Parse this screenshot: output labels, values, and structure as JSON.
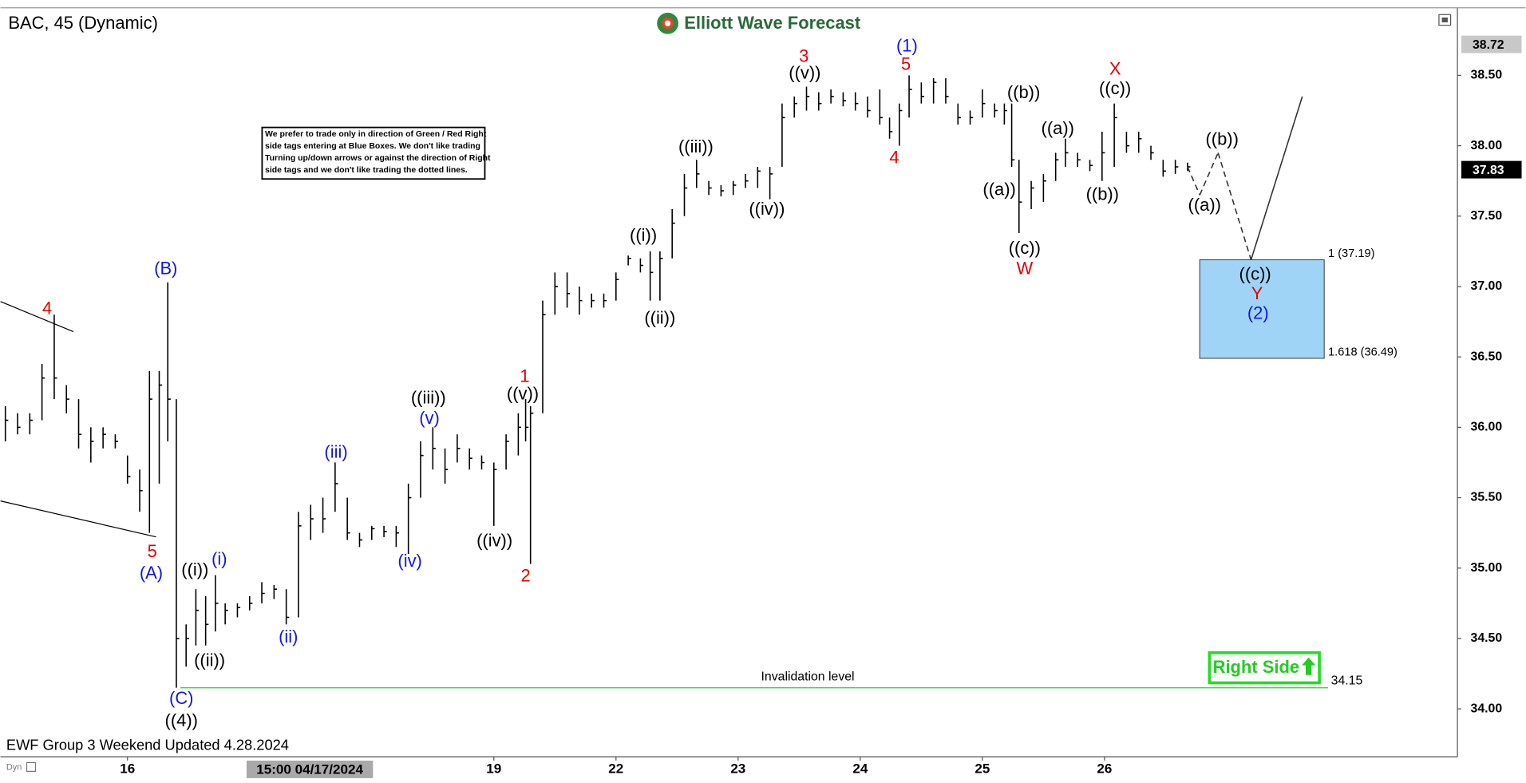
{
  "chart_data": {
    "type": "ohlc",
    "title": "BAC, 45 (Dynamic)",
    "brand": "Elliott Wave Forecast",
    "footer": "EWF Group 3 Weekend Updated 4.28.2024",
    "footer_small": "Dyn",
    "crosshair_label": "15:00 04/17/2024",
    "note_lines": [
      "We prefer to trade only in direction of Green / Red Right",
      "side tags entering at Blue Boxes. We don't like trading",
      "Turning up/down arrows or against the direction of Right",
      "side tags and we don't like trading the dotted lines."
    ],
    "right_side": "Right Side",
    "xlim": [
      -0.04,
      11.89
    ],
    "ylim": [
      33.66,
      38.98
    ],
    "xticks": [
      {
        "value": 1,
        "label": "16"
      },
      {
        "value": 4,
        "label": "19"
      },
      {
        "value": 5,
        "label": "22"
      },
      {
        "value": 6,
        "label": "23"
      },
      {
        "value": 7,
        "label": "24"
      },
      {
        "value": 8,
        "label": "25"
      },
      {
        "value": 9,
        "label": "26"
      }
    ],
    "yticks": [
      {
        "value": 34,
        "label": "34.00"
      },
      {
        "value": 34.5,
        "label": "34.50"
      },
      {
        "value": 35,
        "label": "35.00"
      },
      {
        "value": 35.5,
        "label": "35.50"
      },
      {
        "value": 36,
        "label": "36.00"
      },
      {
        "value": 36.5,
        "label": "36.50"
      },
      {
        "value": 37,
        "label": "37.00"
      },
      {
        "value": 37.5,
        "label": "37.50"
      },
      {
        "value": 38,
        "label": "38.00"
      },
      {
        "value": 38.5,
        "label": "38.50"
      }
    ],
    "price_tags": [
      {
        "value": 38.72,
        "color": "#c8c8c8",
        "text_color": "#000000"
      },
      {
        "value": 37.83,
        "color": "#000000",
        "text_color": "#ffffff"
      }
    ],
    "bar_color": "#000000",
    "x": [
      0,
      0.1,
      0.2,
      0.3,
      0.4,
      0.5,
      0.6,
      0.7,
      0.8,
      0.9,
      1.0,
      1.1,
      1.18,
      1.26,
      1.33,
      1.4,
      1.48,
      1.56,
      1.64,
      1.72,
      1.8,
      1.9,
      2.0,
      2.1,
      2.2,
      2.3,
      2.4,
      2.5,
      2.6,
      2.7,
      2.8,
      2.9,
      3.0,
      3.1,
      3.2,
      3.3,
      3.4,
      3.5,
      3.6,
      3.7,
      3.8,
      3.9,
      4.0,
      4.1,
      4.2,
      4.26,
      4.3,
      4.4,
      4.5,
      4.6,
      4.7,
      4.8,
      4.9,
      5.0,
      5.1,
      5.2,
      5.28,
      5.36,
      5.46,
      5.56,
      5.66,
      5.76,
      5.86,
      5.96,
      6.06,
      6.16,
      6.26,
      6.36,
      6.46,
      6.56,
      6.66,
      6.76,
      6.86,
      6.96,
      7.06,
      7.16,
      7.24,
      7.32,
      7.4,
      7.5,
      7.6,
      7.7,
      7.8,
      7.9,
      8.0,
      8.1,
      8.18,
      8.24,
      8.3,
      8.4,
      8.5,
      8.6,
      8.68,
      8.78,
      8.88,
      8.98,
      9.08,
      9.18,
      9.28,
      9.38,
      9.48,
      9.58,
      9.68
    ],
    "high": [
      36.15,
      36.1,
      36.1,
      36.45,
      36.8,
      36.3,
      36.2,
      36.0,
      36.0,
      35.95,
      35.8,
      35.7,
      36.4,
      36.4,
      37.03,
      36.2,
      34.6,
      34.85,
      34.8,
      34.95,
      34.75,
      34.75,
      34.8,
      34.9,
      34.88,
      34.85,
      35.4,
      35.45,
      35.5,
      35.75,
      35.5,
      35.25,
      35.3,
      35.3,
      35.3,
      35.6,
      35.9,
      36.0,
      35.85,
      35.95,
      35.85,
      35.8,
      35.75,
      35.95,
      36.1,
      36.2,
      36.15,
      36.9,
      37.1,
      37.1,
      37.0,
      36.95,
      36.95,
      37.1,
      37.22,
      37.2,
      37.25,
      37.25,
      37.55,
      37.8,
      37.9,
      37.75,
      37.72,
      37.75,
      37.8,
      37.85,
      37.85,
      38.3,
      38.35,
      38.42,
      38.38,
      38.4,
      38.38,
      38.38,
      38.35,
      38.4,
      38.2,
      38.3,
      38.5,
      38.45,
      38.48,
      38.48,
      38.3,
      38.25,
      38.4,
      38.3,
      38.3,
      38.3,
      37.9,
      37.75,
      37.8,
      37.95,
      38.05,
      37.95,
      37.9,
      38.1,
      38.3,
      38.1,
      38.1,
      38.0,
      37.9,
      37.9,
      37.88
    ],
    "low": [
      35.9,
      35.95,
      35.95,
      36.05,
      36.2,
      36.1,
      35.85,
      35.75,
      35.85,
      35.85,
      35.6,
      35.4,
      35.25,
      35.6,
      35.9,
      34.15,
      34.3,
      34.45,
      34.45,
      34.55,
      34.6,
      34.65,
      34.7,
      34.75,
      34.78,
      34.6,
      34.65,
      35.2,
      35.25,
      35.4,
      35.2,
      35.15,
      35.2,
      35.22,
      35.15,
      35.1,
      35.5,
      35.7,
      35.6,
      35.75,
      35.7,
      35.7,
      35.3,
      35.7,
      35.8,
      35.9,
      35.03,
      36.1,
      36.8,
      36.85,
      36.8,
      36.85,
      36.85,
      36.9,
      37.15,
      37.1,
      36.9,
      36.9,
      37.2,
      37.5,
      37.7,
      37.65,
      37.64,
      37.65,
      37.7,
      37.7,
      37.62,
      37.85,
      38.2,
      38.25,
      38.25,
      38.3,
      38.28,
      38.25,
      38.2,
      38.15,
      38.05,
      38.0,
      38.2,
      38.3,
      38.3,
      38.3,
      38.15,
      38.15,
      38.2,
      38.2,
      38.15,
      37.85,
      37.38,
      37.55,
      37.6,
      37.75,
      37.85,
      37.85,
      37.82,
      37.75,
      37.85,
      37.95,
      37.95,
      37.9,
      37.78,
      37.8,
      37.82
    ],
    "close": [
      36.05,
      36.0,
      36.05,
      36.35,
      36.35,
      36.2,
      35.95,
      35.9,
      35.95,
      35.9,
      35.65,
      35.55,
      36.2,
      36.3,
      36.2,
      34.5,
      34.5,
      34.7,
      34.6,
      34.75,
      34.7,
      34.72,
      34.75,
      34.82,
      34.85,
      34.65,
      35.3,
      35.35,
      35.35,
      35.6,
      35.25,
      35.2,
      35.28,
      35.26,
      35.25,
      35.5,
      35.8,
      35.85,
      35.7,
      35.85,
      35.78,
      35.75,
      35.7,
      35.9,
      36.0,
      36.0,
      36.1,
      36.8,
      37.0,
      36.95,
      36.9,
      36.9,
      36.9,
      37.05,
      37.2,
      37.15,
      37.1,
      37.2,
      37.45,
      37.7,
      37.8,
      37.7,
      37.68,
      37.72,
      37.75,
      37.82,
      37.8,
      38.2,
      38.3,
      38.35,
      38.3,
      38.35,
      38.32,
      38.3,
      38.25,
      38.2,
      38.1,
      38.25,
      38.4,
      38.35,
      38.45,
      38.35,
      38.2,
      38.2,
      38.3,
      38.25,
      38.25,
      37.9,
      37.6,
      37.7,
      37.75,
      37.9,
      37.95,
      37.9,
      37.86,
      37.95,
      38.2,
      38.0,
      38.05,
      37.95,
      37.82,
      37.85,
      37.85
    ],
    "projection": {
      "x": [
        9.68,
        9.78,
        9.93,
        10.2,
        10.62
      ],
      "values": [
        37.85,
        37.65,
        37.95,
        37.19,
        38.35
      ]
    },
    "target_zone": {
      "top": 37.19,
      "bottom": 36.49,
      "top_label": "1 (37.19)",
      "bottom_label": "1.618 (36.49)",
      "color": "#9fd4f7"
    },
    "invalidation": {
      "value": 34.15,
      "label": "Invalidation level",
      "color": "#33dd33"
    },
    "annotations": [
      {
        "text": "4",
        "color": "#e00000"
      },
      {
        "text": "5",
        "color": "#e00000"
      },
      {
        "text": "(A)",
        "color": "#1515e0"
      },
      {
        "text": "(B)",
        "color": "#1515e0"
      },
      {
        "text": "(C)",
        "color": "#1515e0"
      },
      {
        "text": "((4))",
        "color": "#000000"
      },
      {
        "text": "((i))",
        "color": "#000000"
      },
      {
        "text": "((ii))",
        "color": "#000000"
      },
      {
        "text": "(i)",
        "color": "#1515e0"
      },
      {
        "text": "(ii)",
        "color": "#1515e0"
      },
      {
        "text": "(iii)",
        "color": "#1515e0"
      },
      {
        "text": "(iv)",
        "color": "#1515e0"
      },
      {
        "text": "(v)",
        "color": "#1515e0"
      },
      {
        "text": "((iii))",
        "color": "#000000"
      },
      {
        "text": "((iv))",
        "color": "#000000"
      },
      {
        "text": "1",
        "color": "#e00000"
      },
      {
        "text": "((v))",
        "color": "#000000"
      },
      {
        "text": "2",
        "color": "#e00000"
      },
      {
        "text": "((i))",
        "color": "#000000"
      },
      {
        "text": "((ii))",
        "color": "#000000"
      },
      {
        "text": "((iii))",
        "color": "#000000"
      },
      {
        "text": "((iv))",
        "color": "#000000"
      },
      {
        "text": "3",
        "color": "#e00000"
      },
      {
        "text": "((v))",
        "color": "#000000"
      },
      {
        "text": "(1)",
        "color": "#1515e0"
      },
      {
        "text": "5",
        "color": "#e00000"
      },
      {
        "text": "4",
        "color": "#e00000"
      },
      {
        "text": "((b))",
        "color": "#000000"
      },
      {
        "text": "((a))",
        "color": "#000000"
      },
      {
        "text": "((c))",
        "color": "#000000"
      },
      {
        "text": "W",
        "color": "#e00000"
      },
      {
        "text": "((a))",
        "color": "#000000"
      },
      {
        "text": "((b))",
        "color": "#000000"
      },
      {
        "text": "X",
        "color": "#e00000"
      },
      {
        "text": "((c))",
        "color": "#000000"
      },
      {
        "text": "((b))",
        "color": "#000000"
      },
      {
        "text": "((a))",
        "color": "#000000"
      },
      {
        "text": "((c))",
        "color": "#000000"
      },
      {
        "text": "Y",
        "color": "#e00000"
      },
      {
        "text": "(2)",
        "color": "#1515e0"
      }
    ]
  }
}
